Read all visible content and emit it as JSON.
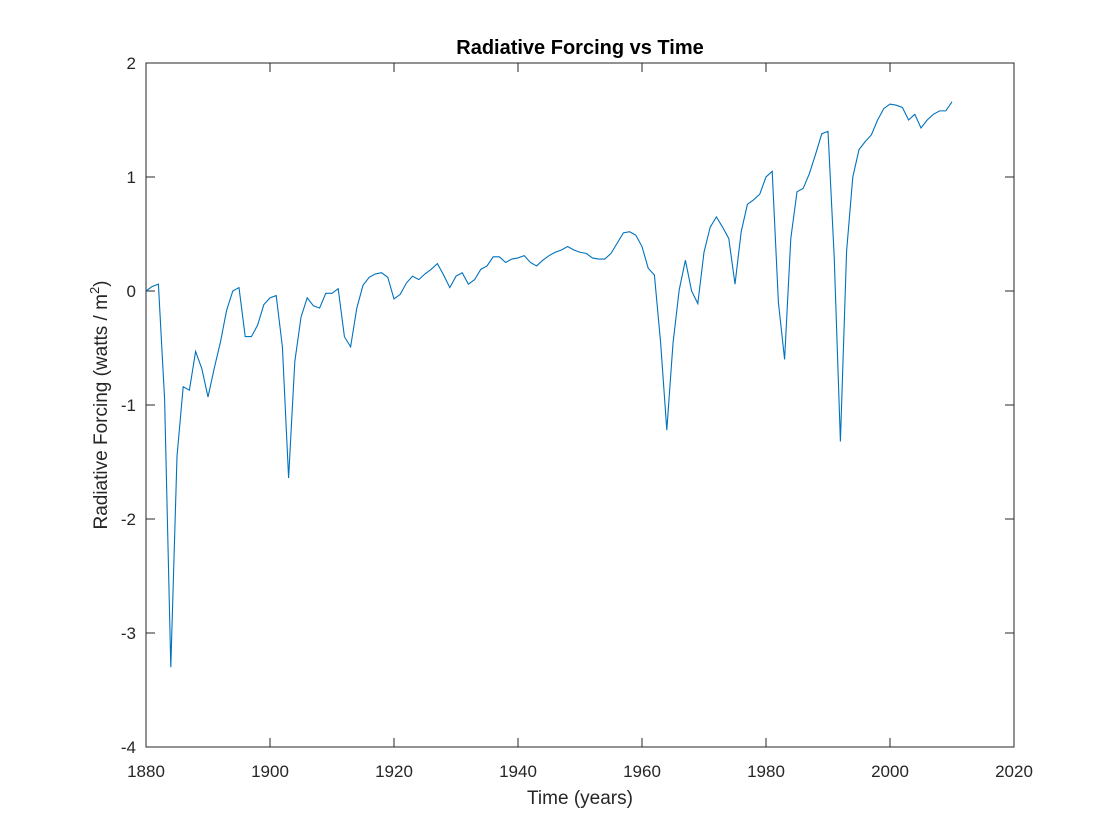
{
  "chart_data": {
    "type": "line",
    "title": "Radiative Forcing vs Time",
    "xlabel": "Time (years)",
    "ylabel_main": "Radiative Forcing (watts / m",
    "ylabel_sup": "2",
    "ylabel_end": ")",
    "xlim": [
      1880,
      2020
    ],
    "ylim": [
      -4,
      2
    ],
    "xticks": [
      "1880",
      "1900",
      "1920",
      "1940",
      "1960",
      "1980",
      "2000",
      "2020"
    ],
    "yticks": [
      "-4",
      "-3",
      "-2",
      "-1",
      "0",
      "1",
      "2"
    ],
    "grid": false,
    "line_color": "#0072BD",
    "x": [
      1880,
      1881,
      1882,
      1883,
      1884,
      1885,
      1886,
      1887,
      1888,
      1889,
      1890,
      1891,
      1892,
      1893,
      1894,
      1895,
      1896,
      1897,
      1898,
      1899,
      1900,
      1901,
      1902,
      1903,
      1904,
      1905,
      1906,
      1907,
      1908,
      1909,
      1910,
      1911,
      1912,
      1913,
      1914,
      1915,
      1916,
      1917,
      1918,
      1919,
      1920,
      1921,
      1922,
      1923,
      1924,
      1925,
      1926,
      1927,
      1928,
      1929,
      1930,
      1931,
      1932,
      1933,
      1934,
      1935,
      1936,
      1937,
      1938,
      1939,
      1940,
      1941,
      1942,
      1943,
      1944,
      1945,
      1946,
      1947,
      1948,
      1949,
      1950,
      1951,
      1952,
      1953,
      1954,
      1955,
      1956,
      1957,
      1958,
      1959,
      1960,
      1961,
      1962,
      1963,
      1964,
      1965,
      1966,
      1967,
      1968,
      1969,
      1970,
      1971,
      1972,
      1973,
      1974,
      1975,
      1976,
      1977,
      1978,
      1979,
      1980,
      1981,
      1982,
      1983,
      1984,
      1985,
      1986,
      1987,
      1988,
      1989,
      1990,
      1991,
      1992,
      1993,
      1994,
      1995,
      1996,
      1997,
      1998,
      1999,
      2000,
      2001,
      2002,
      2003,
      2004,
      2005,
      2006,
      2007,
      2008,
      2009,
      2010
    ],
    "y": [
      0.0,
      0.04,
      0.06,
      -0.95,
      -3.3,
      -1.45,
      -0.84,
      -0.87,
      -0.53,
      -0.68,
      -0.93,
      -0.68,
      -0.45,
      -0.17,
      0.0,
      0.03,
      -0.4,
      -0.4,
      -0.3,
      -0.12,
      -0.06,
      -0.04,
      -0.49,
      -1.64,
      -0.62,
      -0.23,
      -0.06,
      -0.13,
      -0.15,
      -0.02,
      -0.02,
      0.02,
      -0.4,
      -0.49,
      -0.15,
      0.05,
      0.12,
      0.15,
      0.16,
      0.12,
      -0.07,
      -0.03,
      0.07,
      0.13,
      0.1,
      0.15,
      0.19,
      0.24,
      0.14,
      0.03,
      0.13,
      0.16,
      0.06,
      0.1,
      0.19,
      0.22,
      0.3,
      0.3,
      0.25,
      0.28,
      0.29,
      0.31,
      0.25,
      0.22,
      0.27,
      0.31,
      0.34,
      0.36,
      0.39,
      0.36,
      0.34,
      0.33,
      0.29,
      0.28,
      0.28,
      0.33,
      0.42,
      0.51,
      0.52,
      0.49,
      0.39,
      0.2,
      0.14,
      -0.45,
      -1.22,
      -0.46,
      0.01,
      0.27,
      0.0,
      -0.11,
      0.34,
      0.56,
      0.65,
      0.56,
      0.46,
      0.06,
      0.52,
      0.76,
      0.8,
      0.85,
      1.0,
      1.05,
      -0.1,
      -0.6,
      0.46,
      0.87,
      0.9,
      1.03,
      1.2,
      1.38,
      1.4,
      0.3,
      -1.32,
      0.35,
      1.0,
      1.24,
      1.31,
      1.37,
      1.5,
      1.6,
      1.64,
      1.63,
      1.61,
      1.5,
      1.55,
      1.43,
      1.5,
      1.55,
      1.58,
      1.58,
      1.66
    ]
  }
}
